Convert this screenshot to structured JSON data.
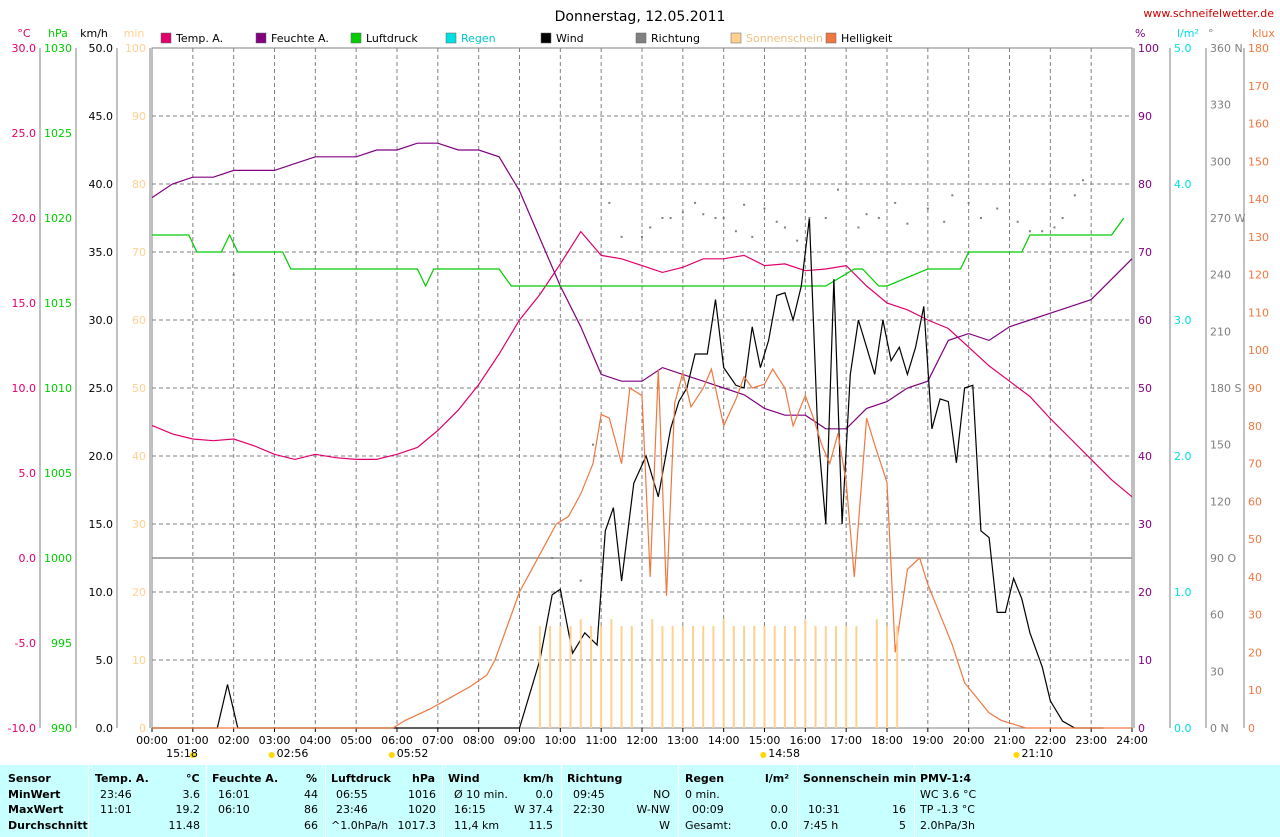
{
  "header": {
    "title": "Donnerstag, 12.05.2011",
    "url": "www.schneifelwetter.de"
  },
  "legend": [
    {
      "label": "Temp. A.",
      "color": "#e0006a"
    },
    {
      "label": "Feuchte A.",
      "color": "#800080"
    },
    {
      "label": "Luftdruck",
      "color": "#00cc00"
    },
    {
      "label": "Regen",
      "color": "#00e0e0"
    },
    {
      "label": "Wind",
      "color": "#000000"
    },
    {
      "label": "Richtung",
      "color": "#808080"
    },
    {
      "label": "Sonnenschein",
      "color": "#ffd090"
    },
    {
      "label": "Helligkeit",
      "color": "#f07840"
    }
  ],
  "axes_left": {
    "temp": {
      "unit": "°C",
      "ticks": [
        "30.0",
        "25.0",
        "20.0",
        "15.0",
        "10.0",
        "5.0",
        "0.0",
        "-5.0",
        "-10.0"
      ],
      "range": [
        -10,
        30
      ],
      "color": "#e0006a"
    },
    "pressure": {
      "unit": "hPa",
      "ticks": [
        "1030",
        "1025",
        "1020",
        "1015",
        "1010",
        "1005",
        "1000",
        "995",
        "990"
      ],
      "range": [
        990,
        1030
      ],
      "color": "#00cc00"
    },
    "wind": {
      "unit": "km/h",
      "ticks": [
        "50.0",
        "45.0",
        "40.0",
        "35.0",
        "30.0",
        "25.0",
        "20.0",
        "15.0",
        "10.0",
        "5.0",
        "0.0"
      ],
      "range": [
        0,
        50
      ],
      "color": "#000000"
    },
    "sunshine": {
      "unit": "min",
      "ticks": [
        "100",
        "90",
        "80",
        "70",
        "60",
        "50",
        "40",
        "30",
        "20",
        "10",
        "0"
      ],
      "range": [
        0,
        100
      ],
      "color": "#ffd090"
    }
  },
  "axes_right": {
    "humidity": {
      "unit": "%",
      "ticks": [
        "100",
        "90",
        "80",
        "70",
        "60",
        "50",
        "40",
        "30",
        "20",
        "10",
        "0"
      ],
      "range": [
        0,
        100
      ],
      "color": "#800080"
    },
    "rain": {
      "unit": "l/m²",
      "ticks": [
        "5.0",
        "4.0",
        "3.0",
        "2.0",
        "1.0",
        "0.0"
      ],
      "range": [
        0,
        5
      ],
      "color": "#00e0e0"
    },
    "direction": {
      "unit": "°",
      "ticks": [
        "360 N",
        "330",
        "300",
        "270 W",
        "240",
        "210",
        "180 S",
        "150",
        "120",
        "90  O",
        "60",
        "30",
        "0   N"
      ],
      "range": [
        0,
        360
      ],
      "color": "#808080"
    },
    "brightness": {
      "unit": "klux",
      "ticks": [
        "180",
        "170",
        "160",
        "150",
        "140",
        "130",
        "120",
        "110",
        "100",
        "90",
        "80",
        "70",
        "60",
        "50",
        "40",
        "30",
        "20",
        "10",
        "0"
      ],
      "range": [
        0,
        180
      ],
      "color": "#f07840"
    }
  },
  "x_ticks": [
    "00:00",
    "01:00",
    "02:00",
    "03:00",
    "04:00",
    "05:00",
    "06:00",
    "07:00",
    "08:00",
    "09:00",
    "10:00",
    "11:00",
    "12:00",
    "13:00",
    "14:00",
    "15:00",
    "16:00",
    "17:00",
    "18:00",
    "19:00",
    "20:00",
    "21:00",
    "22:00",
    "23:00",
    "24:00"
  ],
  "time_markers": [
    {
      "label": "15:18",
      "hour": 1.0,
      "row": 2
    },
    {
      "label": "02:56",
      "hour": 2.93,
      "row": 1
    },
    {
      "label": "05:52",
      "hour": 5.87,
      "row": 2
    },
    {
      "label": "14:58",
      "hour": 14.97,
      "row": 1
    },
    {
      "label": "21:10",
      "hour": 21.17,
      "row": 1
    }
  ],
  "chart_data": {
    "type": "line",
    "title": "Donnerstag, 12.05.2011",
    "x_unit": "hour",
    "series": [
      {
        "name": "Temp. A.",
        "axis": "temp",
        "color": "#e0006a",
        "x": [
          0,
          0.5,
          1,
          1.5,
          2,
          2.5,
          3,
          3.5,
          4,
          4.5,
          5,
          5.5,
          6,
          6.5,
          7,
          7.5,
          8,
          8.5,
          9,
          9.5,
          10,
          10.5,
          11,
          11.5,
          12,
          12.5,
          13,
          13.5,
          14,
          14.5,
          15,
          15.5,
          16,
          16.5,
          17,
          17.5,
          18,
          18.5,
          19,
          19.5,
          20,
          20.5,
          21,
          21.5,
          22,
          22.5,
          23,
          23.5,
          24
        ],
        "y": [
          7.8,
          7.3,
          7.0,
          6.9,
          7.0,
          6.6,
          6.1,
          5.8,
          6.1,
          5.9,
          5.8,
          5.8,
          6.1,
          6.5,
          7.5,
          8.7,
          10.2,
          12.0,
          14.0,
          15.5,
          17.3,
          19.2,
          17.8,
          17.6,
          17.2,
          16.8,
          17.1,
          17.6,
          17.6,
          17.8,
          17.2,
          17.3,
          16.9,
          17.0,
          17.2,
          16.0,
          15.0,
          14.6,
          14.0,
          13.5,
          12.4,
          11.3,
          10.4,
          9.5,
          8.2,
          7.0,
          5.8,
          4.6,
          3.6
        ]
      },
      {
        "name": "Feuchte A.",
        "axis": "humidity",
        "color": "#800080",
        "x": [
          0,
          0.5,
          1,
          1.5,
          2,
          2.5,
          3,
          3.5,
          4,
          4.5,
          5,
          5.5,
          6,
          6.5,
          7,
          7.5,
          8,
          8.5,
          9,
          9.5,
          10,
          10.5,
          11,
          11.5,
          12,
          12.5,
          13,
          13.5,
          14,
          14.5,
          15,
          15.5,
          16,
          16.5,
          17,
          17.5,
          18,
          18.5,
          19,
          19.5,
          20,
          20.5,
          21,
          21.5,
          22,
          22.5,
          23,
          23.5,
          24
        ],
        "y": [
          78,
          80,
          81,
          81,
          82,
          82,
          82,
          83,
          84,
          84,
          84,
          85,
          85,
          86,
          86,
          85,
          85,
          84,
          79,
          72,
          65,
          59,
          52,
          51,
          51,
          53,
          52,
          51,
          50,
          49,
          47,
          46,
          46,
          44,
          44,
          47,
          48,
          50,
          51,
          57,
          58,
          57,
          59,
          60,
          61,
          62,
          63,
          66,
          69
        ]
      },
      {
        "name": "Luftdruck",
        "axis": "pressure",
        "color": "#00cc00",
        "x": [
          0,
          0.9,
          1.1,
          1.7,
          1.9,
          2.1,
          3.2,
          3.4,
          4.0,
          5.0,
          6.5,
          6.7,
          6.9,
          7.5,
          8.0,
          8.5,
          8.8,
          9.0,
          12,
          15,
          16.5,
          17.2,
          17.4,
          17.8,
          18.0,
          19.0,
          19.8,
          20.0,
          21.0,
          21.3,
          21.5,
          21.8,
          22.0,
          23.5,
          23.8
        ],
        "y": [
          1019,
          1019,
          1018,
          1018,
          1019,
          1018,
          1018,
          1017,
          1017,
          1017,
          1017,
          1016,
          1017,
          1017,
          1017,
          1017,
          1016,
          1016,
          1016,
          1016,
          1016,
          1017,
          1017,
          1016,
          1016,
          1017,
          1017,
          1018,
          1018,
          1018,
          1019,
          1019,
          1019,
          1019,
          1020
        ]
      },
      {
        "name": "Wind",
        "axis": "wind",
        "color": "#000000",
        "x": [
          0,
          0.3,
          1.6,
          1.85,
          2.1,
          2.3,
          9.0,
          9.5,
          9.8,
          10.0,
          10.3,
          10.6,
          10.9,
          11.1,
          11.3,
          11.5,
          11.8,
          12.1,
          12.4,
          12.7,
          12.9,
          13.1,
          13.3,
          13.6,
          13.8,
          14.0,
          14.3,
          14.5,
          14.7,
          14.9,
          15.1,
          15.3,
          15.5,
          15.7,
          15.9,
          16.1,
          16.3,
          16.5,
          16.7,
          16.9,
          17.1,
          17.3,
          17.5,
          17.7,
          17.9,
          18.1,
          18.3,
          18.5,
          18.7,
          18.9,
          19.1,
          19.3,
          19.5,
          19.7,
          19.9,
          20.1,
          20.3,
          20.5,
          20.7,
          20.9,
          21.1,
          21.3,
          21.5,
          21.8,
          22.0,
          22.3,
          22.6,
          22.9,
          23.1,
          23.3
        ],
        "y": [
          0,
          0,
          0,
          3.2,
          0,
          0,
          0,
          5,
          9.8,
          10.2,
          5.5,
          7,
          6.1,
          14.5,
          16.2,
          10.8,
          18,
          20,
          17,
          22,
          24,
          25,
          27.5,
          27.5,
          31.5,
          26.5,
          25.2,
          25,
          29.5,
          26.5,
          28.5,
          31.8,
          32,
          30,
          32.5,
          37.5,
          22,
          15,
          33,
          15,
          26,
          30,
          28,
          26,
          30,
          27,
          28,
          26,
          28,
          31,
          22,
          24.2,
          24,
          19.5,
          25,
          25.2,
          14.5,
          14,
          8.5,
          8.5,
          11,
          9.5,
          7,
          4.5,
          2,
          0.5,
          0,
          0,
          0,
          0
        ]
      },
      {
        "name": "Helligkeit",
        "axis": "brightness",
        "color": "#f07840",
        "x": [
          0,
          5.9,
          6.2,
          6.8,
          7.3,
          7.8,
          8.2,
          8.4,
          8.7,
          9.0,
          9.3,
          9.6,
          9.9,
          10.2,
          10.5,
          10.8,
          11.0,
          11.2,
          11.5,
          11.7,
          12.0,
          12.2,
          12.4,
          12.6,
          12.8,
          13.0,
          13.2,
          13.5,
          13.7,
          14.0,
          14.3,
          14.5,
          14.7,
          15.0,
          15.2,
          15.5,
          15.7,
          16.0,
          16.2,
          16.4,
          16.6,
          16.8,
          17.0,
          17.2,
          17.5,
          17.7,
          18.0,
          18.2,
          18.5,
          18.8,
          19.0,
          19.3,
          19.6,
          19.9,
          20.2,
          20.5,
          20.8,
          21.1,
          21.4,
          21.7,
          24
        ],
        "y": [
          0,
          0,
          2,
          5,
          8,
          11,
          14,
          18,
          27,
          36,
          42,
          48,
          54,
          56,
          62,
          70,
          83,
          82,
          70,
          90,
          88,
          40,
          95,
          35,
          86,
          94,
          85,
          90,
          95,
          80,
          87,
          93,
          90,
          91,
          95,
          90,
          80,
          88,
          82,
          75,
          70,
          78,
          65,
          40,
          82,
          75,
          65,
          20,
          42,
          45,
          38,
          30,
          22,
          12,
          8,
          4,
          2,
          1,
          0,
          0,
          0
        ]
      },
      {
        "name": "Sonnenschein",
        "axis": "sunshine",
        "color": "#ffd090",
        "kind": "bars",
        "x": [
          9.5,
          9.75,
          10.0,
          10.25,
          10.5,
          10.75,
          11.0,
          11.25,
          11.5,
          11.75,
          12.25,
          12.5,
          12.75,
          13.0,
          13.25,
          13.5,
          13.75,
          14.0,
          14.25,
          14.5,
          14.75,
          15.0,
          15.25,
          15.5,
          15.75,
          16.0,
          16.25,
          16.5,
          16.75,
          17.0,
          17.25,
          17.75,
          18.0,
          18.25
        ],
        "y": [
          15,
          15,
          15,
          15,
          16,
          15,
          15,
          16,
          15,
          15,
          16,
          15,
          15,
          15,
          15,
          15,
          15,
          16,
          15,
          15,
          15,
          15,
          15,
          15,
          15,
          16,
          15,
          15,
          15,
          15,
          15,
          16,
          15,
          15
        ]
      },
      {
        "name": "Richtung",
        "axis": "direction",
        "color": "#808080",
        "kind": "dots",
        "x": [
          2.0,
          9.5,
          9.8,
          10.5,
          10.8,
          11.2,
          11.5,
          12.0,
          12.2,
          12.5,
          12.7,
          13.0,
          13.3,
          13.5,
          13.8,
          14.0,
          14.3,
          14.5,
          14.7,
          15.0,
          15.3,
          15.5,
          15.8,
          16.1,
          16.5,
          16.8,
          17.3,
          17.5,
          17.8,
          18.2,
          18.5,
          19.0,
          19.4,
          19.6,
          20.0,
          20.3,
          20.7,
          21.2,
          21.5,
          21.8,
          22.1,
          22.3,
          22.6,
          22.8
        ],
        "y": [
          240,
          230,
          90,
          78,
          150,
          278,
          260,
          260,
          265,
          270,
          270,
          273,
          278,
          272,
          270,
          270,
          263,
          277,
          260,
          275,
          268,
          265,
          258,
          270,
          270,
          285,
          265,
          272,
          270,
          278,
          267,
          275,
          268,
          282,
          278,
          270,
          275,
          268,
          263,
          263,
          265,
          270,
          282,
          290
        ]
      }
    ]
  },
  "stats": {
    "row_labels": [
      "Sensor",
      "MinWert",
      "MaxWert",
      "Durchschnitt"
    ],
    "temp": {
      "head": "Temp. A.",
      "unit": "°C",
      "min_t": "23:46",
      "min_v": "3.6",
      "max_t": "11:01",
      "max_v": "19.2",
      "avg_v": "11.48"
    },
    "humidity": {
      "head": "Feuchte A.",
      "unit": "%",
      "min_t": "16:01",
      "min_v": "44",
      "max_t": "06:10",
      "max_v": "86",
      "avg_v": "66"
    },
    "pressure": {
      "head": "Luftdruck",
      "unit": "hPa",
      "min_t": "06:55",
      "min_v": "1016",
      "max_t": "23:46",
      "max_v": "1020",
      "avg_t": "^1.0hPa/h",
      "avg_v": "1017.3"
    },
    "wind": {
      "head": "Wind",
      "unit": "km/h",
      "min_t": "Ø 10 min.",
      "min_v": "0.0",
      "max_t": "16:15",
      "max_v": "W 37.4",
      "avg_t": "11,4 km",
      "avg_v": "11.5"
    },
    "direction": {
      "head": "Richtung",
      "min_t": "09:45",
      "min_v": "NO",
      "max_t": "22:30",
      "max_v": "W-NW",
      "avg_v": "W"
    },
    "rain": {
      "head": "Regen",
      "unit": "l/m²",
      "min_t": "0 min.",
      "min_v": "",
      "max_t": "00:09",
      "max_v": "0.0",
      "avg_t": "Gesamt:",
      "avg_v": "0.0"
    },
    "sunshine": {
      "head": "Sonnenschein min",
      "min_t": "10:31",
      "min_v": "16",
      "max_t": "",
      "max_v": "",
      "avg_t": "7:45 h",
      "avg_v": "5"
    },
    "pmv": {
      "head": "PMV-1:4",
      "min": "WC 3.6 °C",
      "max": "TP -1.3 °C",
      "avg": "2.0hPa/3h"
    }
  }
}
